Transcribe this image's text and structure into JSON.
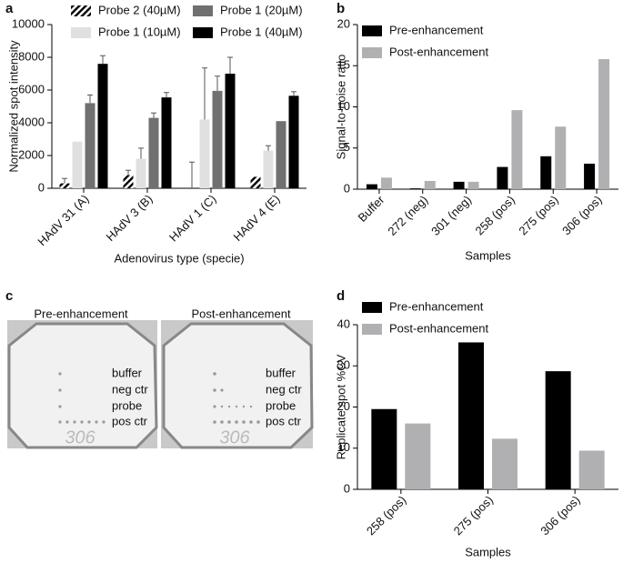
{
  "panel_labels": [
    "a",
    "b",
    "c",
    "d"
  ],
  "chart_data": [
    {
      "type": "bar",
      "x_label": "Adenovirus type (specie)",
      "y_label": "Normalized spot intensity",
      "categories": [
        "HAdV 31 (A)",
        "HAdV 3 (B)",
        "HAdV 1 (C)",
        "HAdV 4 (E)"
      ],
      "series": [
        {
          "name": "Probe 2 (40µM)",
          "color": "#000000",
          "hatch": true,
          "values": [
            300,
            800,
            0,
            700
          ],
          "errors": [
            300,
            300,
            1600,
            0
          ]
        },
        {
          "name": "Probe 1 (10µM)",
          "color": "#e0e0e0",
          "values": [
            2850,
            1800,
            4200,
            2300
          ],
          "errors": [
            0,
            650,
            3150,
            300
          ]
        },
        {
          "name": "Probe 1 (20µM)",
          "color": "#707070",
          "values": [
            5200,
            4300,
            5950,
            4100
          ],
          "errors": [
            500,
            300,
            900,
            0
          ]
        },
        {
          "name": "Probe 1 (40µM)",
          "color": "#000000",
          "values": [
            7600,
            5550,
            7000,
            5650
          ],
          "errors": [
            500,
            300,
            1000,
            250
          ]
        }
      ],
      "ylim": [
        0,
        10000
      ],
      "yticks": [
        0,
        2000,
        4000,
        6000,
        8000,
        10000
      ]
    },
    {
      "type": "bar",
      "x_label": "Samples",
      "y_label": "Signal-to-noise ratio",
      "categories": [
        "Buffer",
        "272 (neg)",
        "301 (neg)",
        "258 (pos)",
        "275 (pos)",
        "306 (pos)"
      ],
      "series": [
        {
          "name": "Pre-enhancement",
          "color": "#000000",
          "values": [
            0.6,
            0.1,
            0.9,
            2.7,
            4.0,
            3.1
          ]
        },
        {
          "name": "Post-enhancement",
          "color": "#b0b0b3",
          "values": [
            1.4,
            1.0,
            0.9,
            9.6,
            7.6,
            15.8
          ]
        }
      ],
      "ylim": [
        0,
        20
      ],
      "yticks": [
        0,
        5,
        10,
        15,
        20
      ]
    },
    {
      "type": "bar",
      "x_label": "Samples",
      "y_label": "Replicate spot %CV",
      "categories": [
        "258 (pos)",
        "275 (pos)",
        "306 (pos)"
      ],
      "series": [
        {
          "name": "Pre-enhancement",
          "color": "#000000",
          "values": [
            19.5,
            35.7,
            28.7
          ]
        },
        {
          "name": "Post-enhancement",
          "color": "#b0b0b3",
          "values": [
            16.0,
            12.3,
            9.4
          ]
        }
      ],
      "ylim": [
        0,
        40
      ],
      "yticks": [
        0,
        10,
        20,
        30,
        40
      ]
    }
  ],
  "photo_panel": {
    "titles": [
      "Pre-enhancement",
      "Post-enhancement"
    ],
    "spot_labels": [
      "buffer",
      "neg ctr",
      "probe",
      "pos ctr"
    ],
    "plate_text": "306"
  }
}
